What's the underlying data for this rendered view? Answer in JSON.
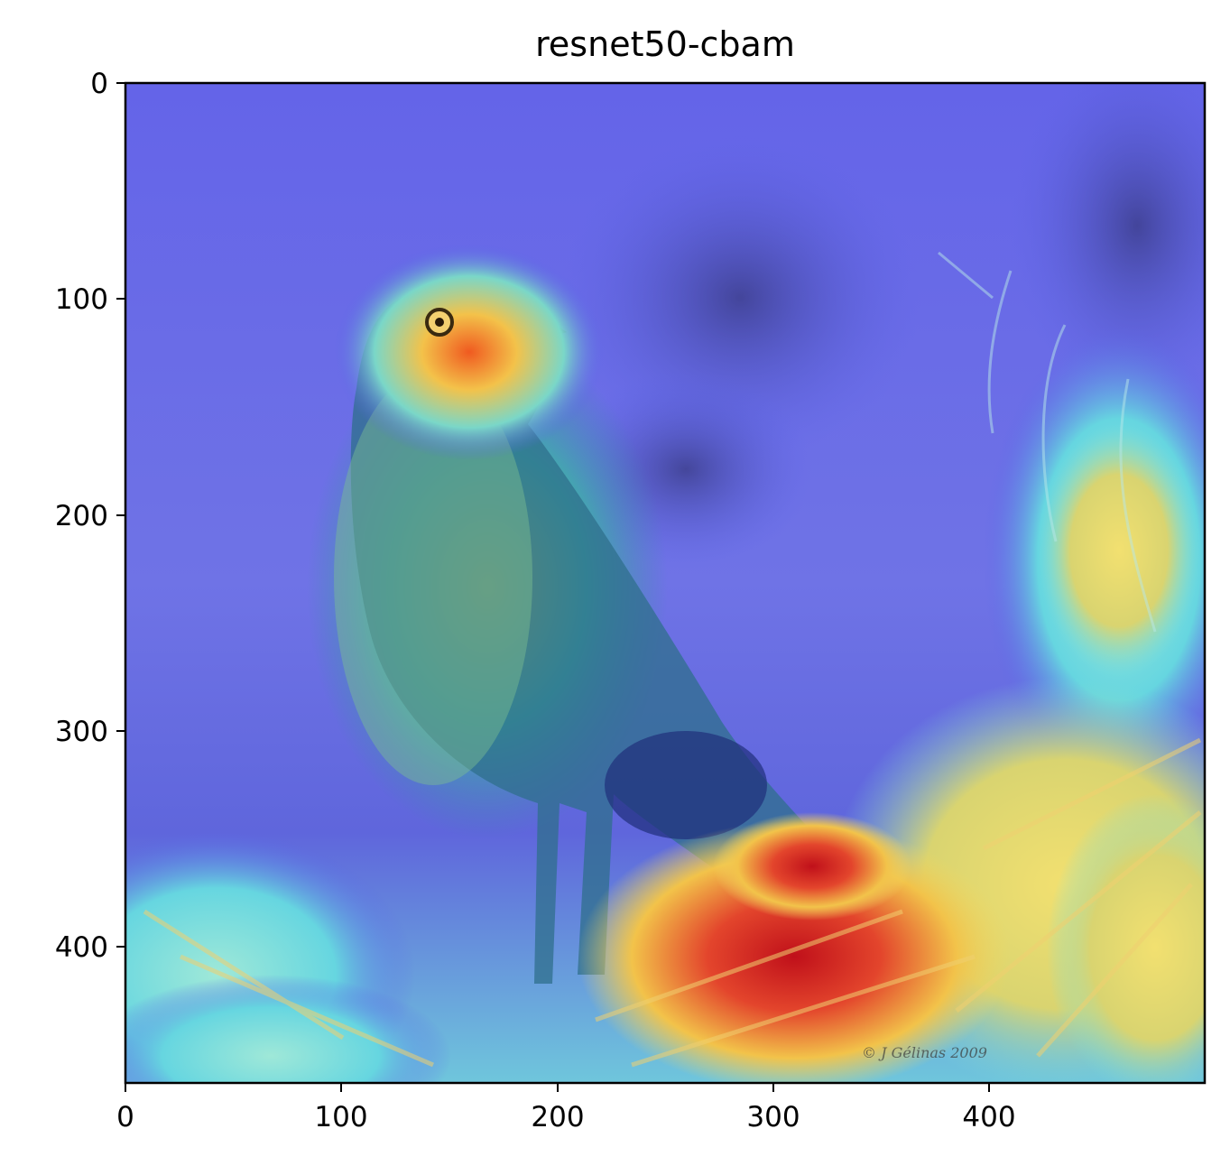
{
  "figure": {
    "title": "resnet50-cbam",
    "watermark": "© J Gélinas 2009"
  },
  "axes": {
    "x_ticks": [
      "0",
      "100",
      "200",
      "300",
      "400"
    ],
    "y_ticks": [
      "0",
      "100",
      "200",
      "300",
      "400"
    ]
  },
  "colors": {
    "overlay_blue": "#5a63e8",
    "overlay_red": "#d11a1a",
    "overlay_yellow": "#f0e060",
    "overlay_cyan": "#5fe0e6"
  }
}
